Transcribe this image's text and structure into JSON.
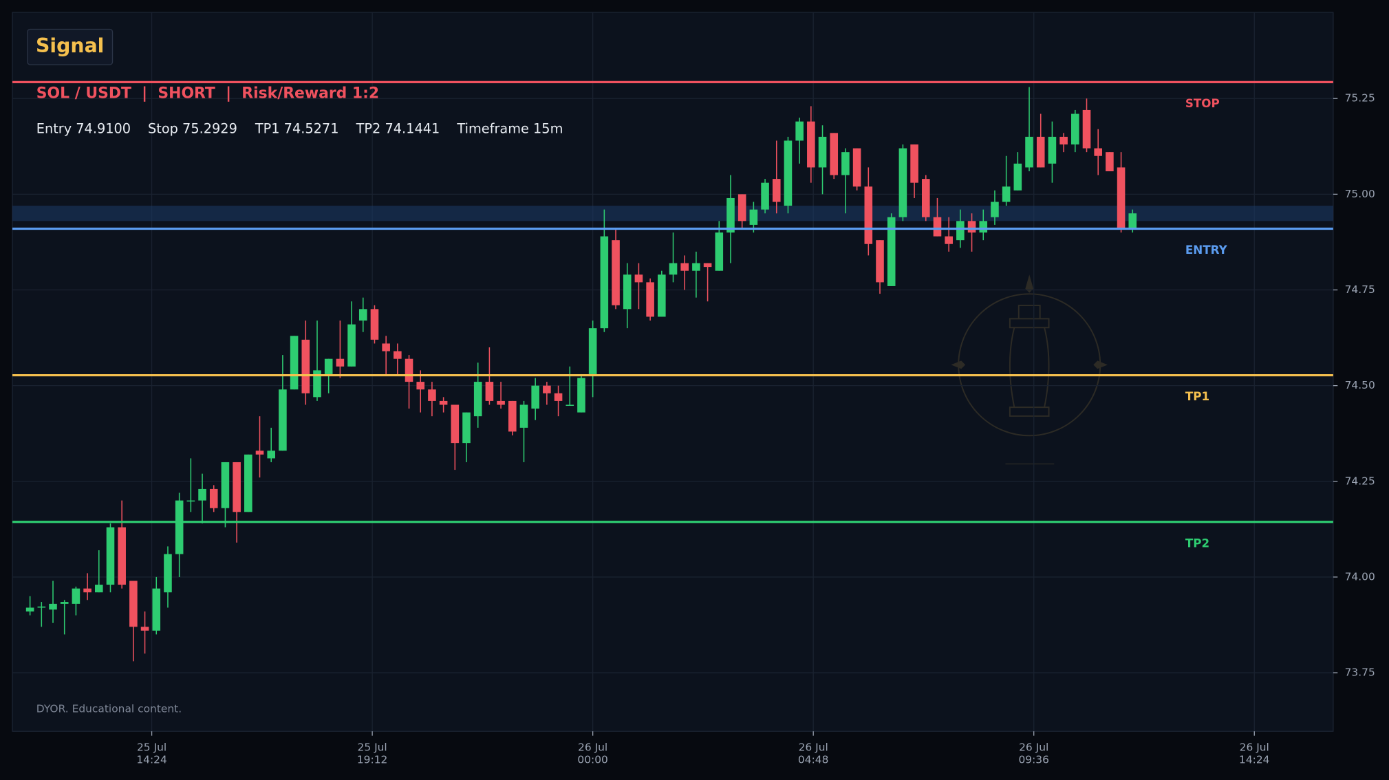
{
  "chart_data": {
    "type": "candlestick",
    "badge": "Signal",
    "title": "SOL / USDT  |  SHORT  |  Risk/Reward 1:2",
    "info": [
      "Entry 74.9100",
      "Stop 75.2929",
      "TP1 74.5271",
      "TP2 74.1441",
      "Timeframe 15m"
    ],
    "footnote": "DYOR. Educational content.",
    "up_color": "#2ecc71",
    "down_color": "#f0525f",
    "grid": true,
    "levels": [
      {
        "label": "STOP",
        "value": 75.2929,
        "color": "#f0525f"
      },
      {
        "label": "ENTRY",
        "value": 74.91,
        "color": "#5b9cf0"
      },
      {
        "label": "TP1",
        "value": 74.5271,
        "color": "#f5c04e"
      },
      {
        "label": "TP2",
        "value": 74.1441,
        "color": "#2ecc71"
      }
    ],
    "entry_zone": [
      74.93,
      74.97
    ],
    "xlim": [
      "25 Jul 11:22",
      "26 Jul 16:07"
    ],
    "xticks": [
      {
        "value": "25 Jul 14:24",
        "label": [
          "25 Jul",
          "14:24"
        ]
      },
      {
        "value": "25 Jul 19:12",
        "label": [
          "25 Jul",
          "19:12"
        ]
      },
      {
        "value": "26 Jul 00:00",
        "label": [
          "26 Jul",
          "00:00"
        ]
      },
      {
        "value": "26 Jul 04:48",
        "label": [
          "26 Jul",
          "04:48"
        ]
      },
      {
        "value": "26 Jul 09:36",
        "label": [
          "26 Jul",
          "09:36"
        ]
      },
      {
        "value": "26 Jul 14:24",
        "label": [
          "26 Jul",
          "14:24"
        ]
      }
    ],
    "ylim": [
      73.597,
      75.475
    ],
    "yticks": [
      73.75,
      {
        "value": 74,
        "label": "74.00"
      },
      74.25,
      {
        "value": 74.5,
        "label": "74.50"
      },
      74.75,
      {
        "value": 75,
        "label": "75.00"
      },
      75.25
    ],
    "x": [
      "25 Jul 11:45",
      "25 Jul 12:00",
      "25 Jul 12:15",
      "25 Jul 12:30",
      "25 Jul 12:45",
      "25 Jul 13:00",
      "25 Jul 13:15",
      "25 Jul 13:30",
      "25 Jul 13:45",
      "25 Jul 14:00",
      "25 Jul 14:15",
      "25 Jul 14:30",
      "25 Jul 14:45",
      "25 Jul 15:00",
      "25 Jul 15:15",
      "25 Jul 15:30",
      "25 Jul 15:45",
      "25 Jul 16:00",
      "25 Jul 16:15",
      "25 Jul 16:30",
      "25 Jul 16:45",
      "25 Jul 17:00",
      "25 Jul 17:15",
      "25 Jul 17:30",
      "25 Jul 17:45",
      "25 Jul 18:00",
      "25 Jul 18:15",
      "25 Jul 18:30",
      "25 Jul 18:45",
      "25 Jul 19:00",
      "25 Jul 19:15",
      "25 Jul 19:30",
      "25 Jul 19:45",
      "25 Jul 20:00",
      "25 Jul 20:15",
      "25 Jul 20:30",
      "25 Jul 20:45",
      "25 Jul 21:00",
      "25 Jul 21:15",
      "25 Jul 21:30",
      "25 Jul 21:45",
      "25 Jul 22:00",
      "25 Jul 22:15",
      "25 Jul 22:30",
      "25 Jul 22:45",
      "25 Jul 23:00",
      "25 Jul 23:15",
      "25 Jul 23:30",
      "25 Jul 23:45",
      "26 Jul 00:00",
      "26 Jul 00:15",
      "26 Jul 00:30",
      "26 Jul 00:45",
      "26 Jul 01:00",
      "26 Jul 01:15",
      "26 Jul 01:30",
      "26 Jul 01:45",
      "26 Jul 02:00",
      "26 Jul 02:15",
      "26 Jul 02:30",
      "26 Jul 02:45",
      "26 Jul 03:00",
      "26 Jul 03:15",
      "26 Jul 03:30",
      "26 Jul 03:45",
      "26 Jul 04:00",
      "26 Jul 04:15",
      "26 Jul 04:30",
      "26 Jul 04:45",
      "26 Jul 05:00",
      "26 Jul 05:15",
      "26 Jul 05:30",
      "26 Jul 05:45",
      "26 Jul 06:00",
      "26 Jul 06:15",
      "26 Jul 06:30",
      "26 Jul 06:45",
      "26 Jul 07:00",
      "26 Jul 07:15",
      "26 Jul 07:30",
      "26 Jul 07:45",
      "26 Jul 08:00",
      "26 Jul 08:15",
      "26 Jul 08:30",
      "26 Jul 08:45",
      "26 Jul 09:00",
      "26 Jul 09:15",
      "26 Jul 09:30",
      "26 Jul 09:45",
      "26 Jul 10:00",
      "26 Jul 10:15",
      "26 Jul 10:30",
      "26 Jul 10:45",
      "26 Jul 11:00",
      "26 Jul 11:15",
      "26 Jul 11:30",
      "26 Jul 11:45"
    ],
    "open": [
      73.91,
      73.92,
      73.915,
      73.93,
      73.93,
      73.97,
      73.96,
      73.98,
      74.13,
      73.99,
      73.87,
      73.86,
      73.96,
      74.06,
      74.2,
      74.2,
      74.23,
      74.18,
      74.3,
      74.17,
      74.33,
      74.31,
      74.33,
      74.49,
      74.62,
      74.47,
      74.53,
      74.57,
      74.55,
      74.67,
      74.7,
      74.61,
      74.59,
      74.57,
      74.51,
      74.49,
      74.46,
      74.45,
      74.35,
      74.42,
      74.51,
      74.46,
      74.46,
      74.39,
      74.44,
      74.5,
      74.48,
      74.45,
      74.43,
      74.53,
      74.65,
      74.88,
      74.7,
      74.79,
      74.77,
      74.68,
      74.79,
      74.82,
      74.8,
      74.82,
      74.8,
      74.9,
      75.0,
      74.92,
      74.96,
      75.04,
      74.97,
      75.14,
      75.19,
      75.07,
      75.16,
      75.05,
      75.12,
      75.02,
      74.88,
      74.76,
      74.94,
      75.13,
      75.04,
      74.94,
      74.89,
      74.88,
      74.93,
      74.9,
      74.94,
      74.98,
      75.01,
      75.07,
      75.15,
      75.08,
      75.15,
      75.13,
      75.22,
      75.12,
      75.11,
      75.07,
      74.91
    ],
    "high": [
      73.95,
      73.935,
      73.99,
      73.94,
      73.975,
      74.01,
      74.07,
      74.14,
      74.2,
      73.99,
      73.91,
      74.0,
      74.08,
      74.22,
      74.31,
      74.27,
      74.24,
      74.3,
      74.3,
      74.32,
      74.42,
      74.39,
      74.58,
      74.63,
      74.67,
      74.67,
      74.57,
      74.67,
      74.72,
      74.73,
      74.71,
      74.63,
      74.61,
      74.58,
      74.54,
      74.51,
      74.47,
      74.45,
      74.43,
      74.56,
      74.6,
      74.51,
      74.46,
      74.46,
      74.52,
      74.51,
      74.5,
      74.55,
      74.53,
      74.67,
      74.96,
      74.91,
      74.82,
      74.82,
      74.78,
      74.8,
      74.9,
      74.84,
      74.85,
      74.82,
      74.93,
      75.05,
      75.0,
      74.98,
      75.04,
      75.14,
      75.15,
      75.2,
      75.23,
      75.18,
      75.16,
      75.12,
      75.12,
      75.07,
      74.88,
      74.95,
      75.13,
      75.13,
      75.05,
      74.99,
      74.94,
      74.96,
      74.95,
      74.96,
      75.01,
      75.1,
      75.11,
      75.28,
      75.21,
      75.19,
      75.16,
      75.22,
      75.25,
      75.17,
      75.11,
      75.11,
      74.96
    ],
    "low": [
      73.9,
      73.87,
      73.88,
      73.85,
      73.9,
      73.94,
      73.96,
      73.96,
      73.97,
      73.78,
      73.8,
      73.85,
      73.92,
      74.0,
      74.17,
      74.14,
      74.17,
      74.13,
      74.09,
      74.17,
      74.26,
      74.3,
      74.33,
      74.49,
      74.45,
      74.46,
      74.48,
      74.52,
      74.55,
      74.64,
      74.61,
      74.53,
      74.53,
      74.44,
      74.43,
      74.42,
      74.43,
      74.28,
      74.3,
      74.39,
      74.45,
      74.44,
      74.37,
      74.3,
      74.41,
      74.45,
      74.42,
      74.45,
      74.43,
      74.47,
      74.64,
      74.7,
      74.65,
      74.7,
      74.67,
      74.68,
      74.77,
      74.75,
      74.73,
      74.72,
      74.8,
      74.82,
      74.91,
      74.9,
      74.95,
      74.95,
      74.95,
      75.08,
      75.03,
      75.0,
      75.04,
      74.95,
      75.01,
      74.84,
      74.74,
      74.76,
      74.93,
      74.99,
      74.93,
      74.89,
      74.85,
      74.86,
      74.85,
      74.88,
      74.92,
      74.97,
      75.01,
      75.06,
      75.07,
      75.03,
      75.11,
      75.11,
      75.11,
      75.05,
      75.06,
      74.9,
      74.9
    ],
    "close": [
      73.92,
      73.923,
      73.93,
      73.935,
      73.97,
      73.96,
      73.98,
      74.13,
      73.98,
      73.87,
      73.86,
      73.97,
      74.06,
      74.2,
      74.2,
      74.23,
      74.18,
      74.3,
      74.17,
      74.32,
      74.32,
      74.33,
      74.49,
      74.63,
      74.48,
      74.54,
      74.57,
      74.55,
      74.66,
      74.7,
      74.62,
      74.59,
      74.57,
      74.51,
      74.49,
      74.46,
      74.45,
      74.35,
      74.43,
      74.51,
      74.46,
      74.45,
      74.38,
      74.45,
      74.5,
      74.48,
      74.46,
      74.45,
      74.52,
      74.65,
      74.89,
      74.71,
      74.79,
      74.77,
      74.68,
      74.79,
      74.82,
      74.8,
      74.82,
      74.81,
      74.9,
      74.99,
      74.93,
      74.96,
      75.03,
      74.98,
      75.14,
      75.19,
      75.07,
      75.15,
      75.05,
      75.11,
      75.02,
      74.87,
      74.77,
      74.94,
      75.12,
      75.03,
      74.94,
      74.89,
      74.87,
      74.93,
      74.9,
      74.93,
      74.98,
      75.02,
      75.08,
      75.15,
      75.07,
      75.15,
      75.13,
      75.21,
      75.12,
      75.1,
      75.06,
      74.91,
      74.95
    ]
  }
}
